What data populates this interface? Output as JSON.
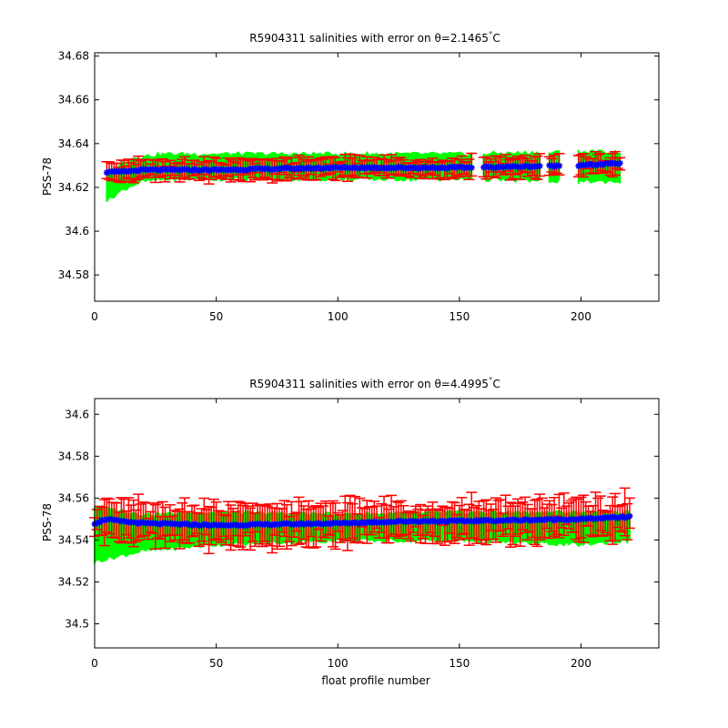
{
  "chart_data": [
    {
      "type": "scatter",
      "title_prefix": "R5904311 salinities with error on ",
      "title_theta": "θ=2.1465",
      "title_degree": "°",
      "title_unit": "C",
      "xlabel": "",
      "ylabel": "PSS-78",
      "xlim": [
        0,
        232
      ],
      "ylim": [
        34.568,
        34.6815
      ],
      "xticks": [
        "0",
        "50",
        "100",
        "150",
        "200"
      ],
      "xtick_values": [
        0,
        50,
        100,
        150,
        200
      ],
      "yticks": [
        "34.58",
        "34.6",
        "34.62",
        "34.64",
        "34.66",
        "34.68"
      ],
      "ytick_values": [
        34.58,
        34.6,
        34.62,
        34.64,
        34.66,
        34.68
      ],
      "x_range": [
        5,
        216
      ],
      "gaps": [
        [
          155,
          160
        ],
        [
          183,
          187
        ],
        [
          191,
          199
        ]
      ],
      "band": {
        "x": [
          5,
          10,
          15,
          20,
          30,
          50,
          100,
          150,
          200,
          216
        ],
        "low": [
          34.614,
          34.618,
          34.621,
          34.623,
          34.624,
          34.624,
          34.624,
          34.624,
          34.623,
          34.623
        ],
        "high": [
          34.626,
          34.63,
          34.633,
          34.634,
          34.635,
          34.635,
          34.635,
          34.635,
          34.636,
          34.636
        ]
      },
      "mean": {
        "x": [
          5,
          10,
          15,
          20,
          30,
          50,
          100,
          150,
          200,
          216
        ],
        "y": [
          34.627,
          34.627,
          34.6275,
          34.628,
          34.628,
          34.628,
          34.629,
          34.629,
          34.63,
          34.631
        ]
      },
      "err_half": 0.0045,
      "series": [
        {
          "color": "#00ff00"
        },
        {
          "color": "#ff0000"
        },
        {
          "color": "#0000ff"
        }
      ]
    },
    {
      "type": "scatter",
      "title_prefix": "R5904311 salinities with error on ",
      "title_theta": "θ=4.4995",
      "title_degree": "°",
      "title_unit": "C",
      "xlabel": "float profile number",
      "ylabel": "PSS-78",
      "xlim": [
        0,
        232
      ],
      "ylim": [
        34.4885,
        34.6075
      ],
      "xticks": [
        "0",
        "50",
        "100",
        "150",
        "200"
      ],
      "xtick_values": [
        0,
        50,
        100,
        150,
        200
      ],
      "yticks": [
        "34.5",
        "34.52",
        "34.54",
        "34.56",
        "34.58",
        "34.6"
      ],
      "ytick_values": [
        34.5,
        34.52,
        34.54,
        34.56,
        34.58,
        34.6
      ],
      "x_range": [
        0,
        220
      ],
      "gaps": [],
      "band": {
        "x": [
          0,
          20,
          50,
          100,
          150,
          200,
          220
        ],
        "low": [
          34.53,
          34.535,
          34.538,
          34.54,
          34.54,
          34.538,
          34.54
        ],
        "high": [
          34.556,
          34.552,
          34.553,
          34.552,
          34.553,
          34.553,
          34.553
        ]
      },
      "mean": {
        "x": [
          0,
          5,
          10,
          20,
          50,
          100,
          130,
          150,
          200,
          220
        ],
        "y": [
          34.548,
          34.55,
          34.549,
          34.548,
          34.547,
          34.548,
          34.549,
          34.549,
          34.55,
          34.551
        ]
      },
      "err_half": 0.0095,
      "series": [
        {
          "color": "#00ff00"
        },
        {
          "color": "#ff0000"
        },
        {
          "color": "#0000ff"
        }
      ]
    }
  ]
}
